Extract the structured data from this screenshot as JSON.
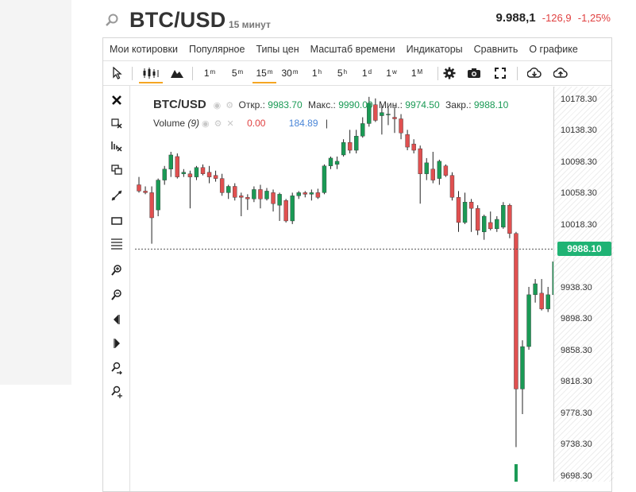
{
  "header": {
    "symbol": "BTC/USD",
    "interval": "15 минут",
    "last_price": "9.988,1",
    "change_abs": "-126,9",
    "change_pct": "-1,25%"
  },
  "menu": [
    "Мои котировки",
    "Популярное",
    "Типы цен",
    "Масштаб времени",
    "Индикаторы",
    "Сравнить",
    "О графике"
  ],
  "timeframes": [
    {
      "base": "1",
      "sup": "m"
    },
    {
      "base": "5",
      "sup": "m"
    },
    {
      "base": "15",
      "sup": "m"
    },
    {
      "base": "30",
      "sup": "m"
    },
    {
      "base": "1",
      "sup": "h"
    },
    {
      "base": "5",
      "sup": "h"
    },
    {
      "base": "1",
      "sup": "d"
    },
    {
      "base": "1",
      "sup": "w"
    },
    {
      "base": "1",
      "sup": "M"
    }
  ],
  "toolbar_icons": [
    "cursor-icon",
    "candles-icon",
    "mountain-chart-icon",
    "settings-gear-icon",
    "camera-icon",
    "fullscreen-icon",
    "download-icon",
    "upload-icon"
  ],
  "side_tools": [
    "close-icon",
    "remove-drawings-icon",
    "remove-indicators-icon",
    "windows-icon",
    "trend-line-icon",
    "rectangle-icon",
    "fibonacci-icon",
    "zoom-in-icon",
    "zoom-out-icon",
    "scroll-left-icon",
    "scroll-right-icon",
    "zoom-fit-icon",
    "zoom-reset-icon"
  ],
  "legend": {
    "symbol": "BTC/USD",
    "open_label": "Откр.:",
    "open": "9983.70",
    "high_label": "Макс.:",
    "high": "9990.00",
    "low_label": "Мин.:",
    "low": "9974.50",
    "close_label": "Закр.:",
    "close": "9988.10",
    "volume_label": "Volume",
    "volume_period": "(9)",
    "volume_val1": "0.00",
    "volume_val2": "184.89",
    "volume_sep": "|"
  },
  "colors": {
    "up": "#1a9a55",
    "down": "#e05050",
    "last_price": "#1fb374",
    "active_tab": "#f5a623"
  },
  "chart_data": {
    "type": "candlestick",
    "symbol": "BTC/USD",
    "y_ticks": [
      "10178.30",
      "10138.30",
      "10098.30",
      "10058.30",
      "10018.30",
      "9938.30",
      "9898.30",
      "9858.30",
      "9818.30",
      "9778.30",
      "9738.30",
      "9698.30"
    ],
    "ylim": [
      9692,
      10195
    ],
    "last_price_label": "9988.10",
    "last_price": 9988.1,
    "candles": [
      [
        10070,
        10080,
        10060,
        10062
      ],
      [
        10062,
        10068,
        10058,
        10060
      ],
      [
        10060,
        10068,
        9995,
        10028
      ],
      [
        10038,
        10078,
        10030,
        10076
      ],
      [
        10076,
        10094,
        10070,
        10090
      ],
      [
        10090,
        10112,
        10080,
        10108
      ],
      [
        10106,
        10110,
        10078,
        10080
      ],
      [
        10084,
        10090,
        10080,
        10086
      ],
      [
        10084,
        10088,
        10040,
        10080
      ],
      [
        10080,
        10094,
        10076,
        10092
      ],
      [
        10092,
        10096,
        10082,
        10084
      ],
      [
        10086,
        10094,
        10072,
        10080
      ],
      [
        10082,
        10088,
        10074,
        10078
      ],
      [
        10078,
        10084,
        10056,
        10060
      ],
      [
        10060,
        10070,
        10052,
        10068
      ],
      [
        10068,
        10072,
        10050,
        10054
      ],
      [
        10056,
        10060,
        10030,
        10054
      ],
      [
        10054,
        10058,
        10038,
        10052
      ],
      [
        10052,
        10068,
        10048,
        10064
      ],
      [
        10064,
        10070,
        10040,
        10052
      ],
      [
        10052,
        10066,
        10050,
        10062
      ],
      [
        10060,
        10064,
        10036,
        10046
      ],
      [
        10044,
        10060,
        10024,
        10058
      ],
      [
        10050,
        10052,
        10022,
        10024
      ],
      [
        10024,
        10060,
        10020,
        10056
      ],
      [
        10056,
        10062,
        10052,
        10060
      ],
      [
        10060,
        10062,
        10054,
        10058
      ],
      [
        10058,
        10064,
        10050,
        10060
      ],
      [
        10060,
        10065,
        10052,
        10054
      ],
      [
        10060,
        10096,
        10058,
        10094
      ],
      [
        10094,
        10106,
        10090,
        10104
      ],
      [
        10096,
        10106,
        10090,
        10100
      ],
      [
        10108,
        10128,
        10106,
        10124
      ],
      [
        10124,
        10140,
        10110,
        10114
      ],
      [
        10114,
        10140,
        10110,
        10132
      ],
      [
        10132,
        10156,
        10130,
        10148
      ],
      [
        10148,
        10182,
        10144,
        10174
      ],
      [
        10172,
        10180,
        10150,
        10152
      ],
      [
        10158,
        10172,
        10134,
        10162
      ],
      [
        10160,
        10168,
        10146,
        10160
      ],
      [
        10156,
        10170,
        10136,
        10154
      ],
      [
        10154,
        10160,
        10128,
        10136
      ],
      [
        10134,
        10140,
        10114,
        10118
      ],
      [
        10122,
        10128,
        10110,
        10114
      ],
      [
        10116,
        10120,
        10046,
        10084
      ],
      [
        10084,
        10104,
        10076,
        10098
      ],
      [
        10090,
        10112,
        10072,
        10076
      ],
      [
        10078,
        10102,
        10070,
        10100
      ],
      [
        10094,
        10096,
        10080,
        10082
      ],
      [
        10082,
        10086,
        10050,
        10054
      ],
      [
        10054,
        10062,
        10010,
        10022
      ],
      [
        10022,
        10060,
        10020,
        10048
      ],
      [
        10048,
        10052,
        10010,
        10040
      ],
      [
        10040,
        10044,
        10006,
        10012
      ],
      [
        10010,
        10032,
        10000,
        10030
      ],
      [
        10022,
        10036,
        10012,
        10014
      ],
      [
        10014,
        10030,
        10010,
        10026
      ],
      [
        10016,
        10048,
        10014,
        10044
      ],
      [
        10044,
        10046,
        10002,
        10008
      ],
      [
        10008,
        10010,
        9736,
        9810
      ],
      [
        9810,
        9872,
        9778,
        9864
      ],
      [
        9864,
        9940,
        9860,
        9930
      ],
      [
        9930,
        9950,
        9920,
        9944
      ],
      [
        9932,
        9950,
        9910,
        9912
      ],
      [
        9912,
        9940,
        9908,
        9930
      ],
      [
        9930,
        9978,
        9928,
        9972
      ],
      [
        9982,
        9992,
        9974,
        9988
      ]
    ],
    "volume_bars": [
      [
        59,
        22
      ]
    ]
  }
}
